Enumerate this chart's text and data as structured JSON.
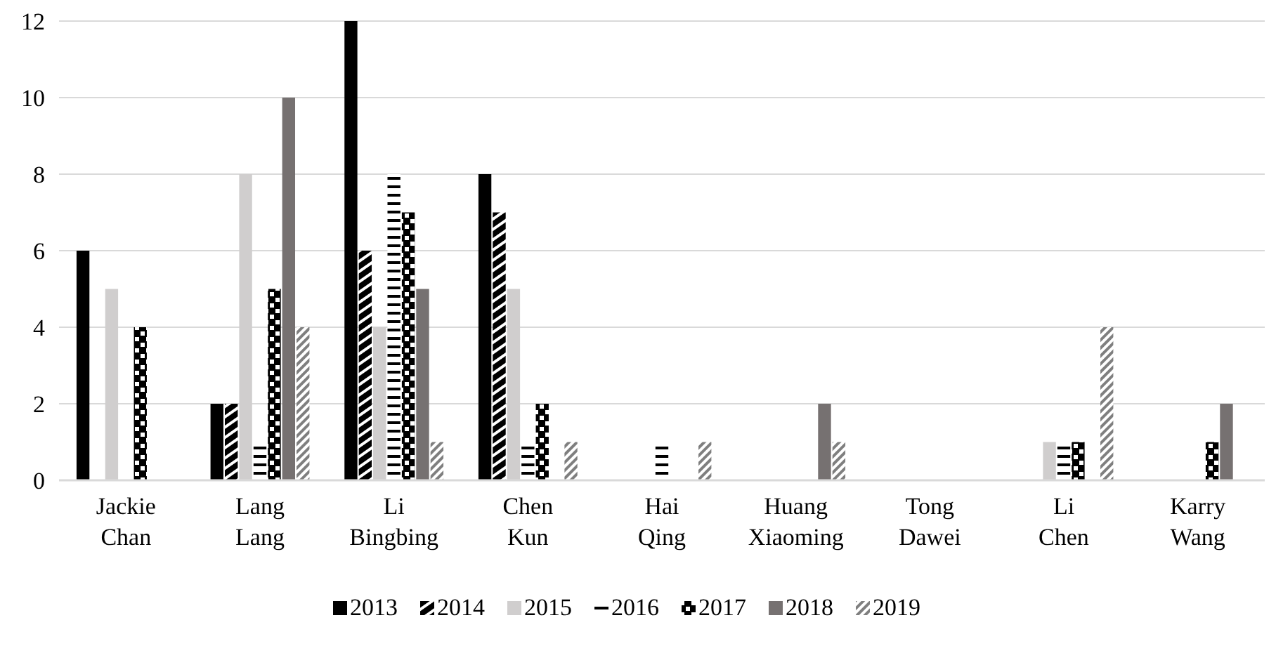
{
  "chart_data": {
    "type": "bar",
    "categories": [
      "Jackie Chan",
      "Lang Lang",
      "Li Bingbing",
      "Chen Kun",
      "Hai Qing",
      "Huang Xiaoming",
      "Tong Dawei",
      "Li Chen",
      "Karry Wang"
    ],
    "series": [
      {
        "name": "2013",
        "color": "#000000",
        "values": [
          6,
          2,
          12,
          8,
          0,
          0,
          0,
          0,
          0
        ]
      },
      {
        "name": "2014",
        "color": "#000000",
        "values": [
          0,
          2,
          6,
          7,
          0,
          0,
          0,
          0,
          0
        ]
      },
      {
        "name": "2015",
        "color": "#d0cece",
        "values": [
          5,
          8,
          4,
          5,
          0,
          0,
          0,
          1,
          0
        ]
      },
      {
        "name": "2016",
        "color": "#000000",
        "values": [
          0,
          1,
          8,
          1,
          1,
          0,
          0,
          1,
          0
        ]
      },
      {
        "name": "2017",
        "color": "#000000",
        "values": [
          4,
          5,
          7,
          2,
          0,
          0,
          0,
          1,
          1
        ]
      },
      {
        "name": "2018",
        "color": "#767171",
        "values": [
          0,
          10,
          5,
          0,
          0,
          2,
          0,
          0,
          2
        ]
      },
      {
        "name": "2019",
        "color": "#7f7f7f",
        "values": [
          0,
          4,
          1,
          1,
          1,
          1,
          0,
          4,
          0
        ]
      }
    ],
    "ylim": [
      0,
      12
    ],
    "yticks": [
      0,
      2,
      4,
      6,
      8,
      10,
      12
    ],
    "grid": "y",
    "legend": "bottom"
  }
}
